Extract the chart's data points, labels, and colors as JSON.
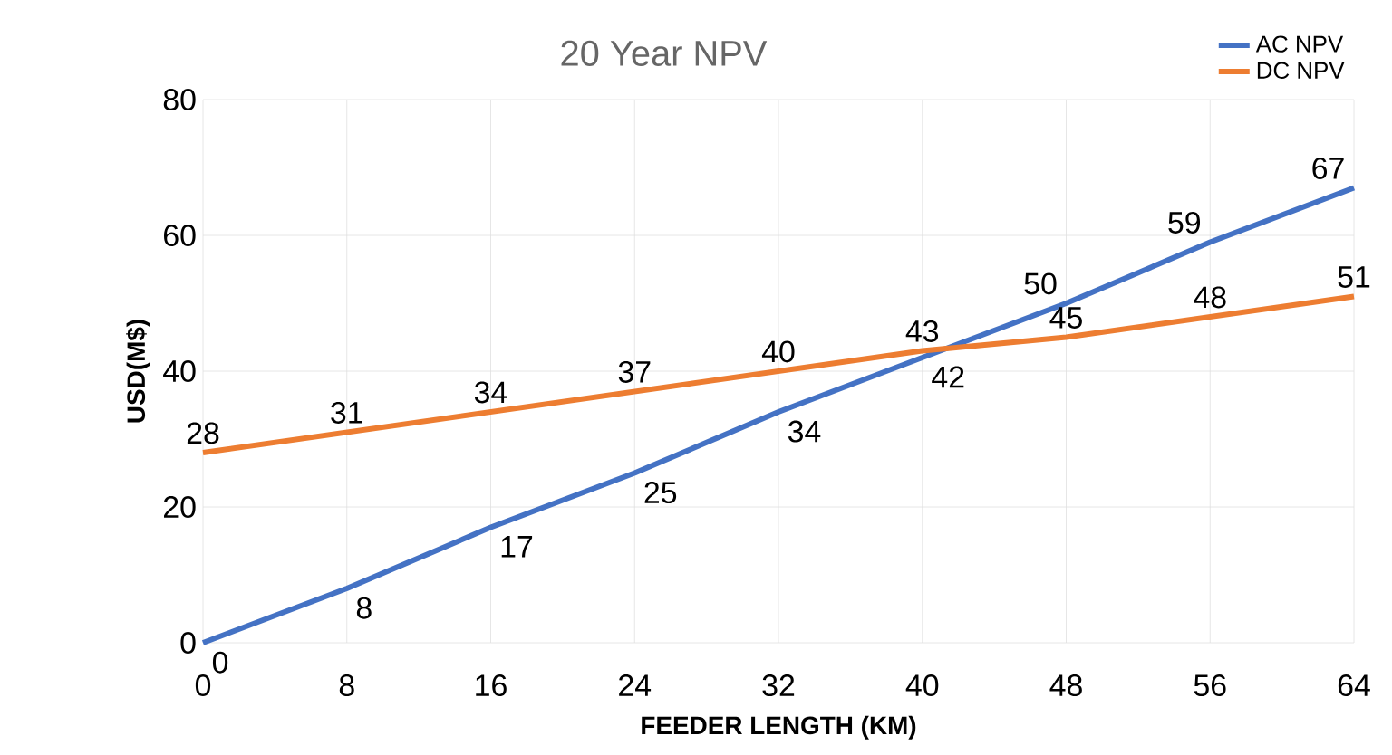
{
  "chart_data": {
    "type": "line",
    "title": "20 Year NPV",
    "xlabel": "FEEDER LENGTH (KM)",
    "ylabel": "USD(M$)",
    "x": [
      0,
      8,
      16,
      24,
      32,
      40,
      48,
      56,
      64
    ],
    "series": [
      {
        "name": "AC NPV",
        "color": "#4472c4",
        "values": [
          0,
          8,
          17,
          25,
          34,
          42,
          50,
          59,
          67
        ]
      },
      {
        "name": "DC NPV",
        "color": "#ed7d31",
        "values": [
          28,
          31,
          34,
          37,
          40,
          43,
          45,
          48,
          51
        ]
      }
    ],
    "xlim": [
      0,
      64
    ],
    "ylim": [
      0,
      80
    ],
    "xticks": [
      0,
      8,
      16,
      24,
      32,
      40,
      48,
      56,
      64
    ],
    "yticks": [
      0,
      20,
      40,
      60,
      80
    ],
    "grid": true,
    "legend": "top right",
    "data_labels": true,
    "marker": "none",
    "line_style": "solid"
  }
}
